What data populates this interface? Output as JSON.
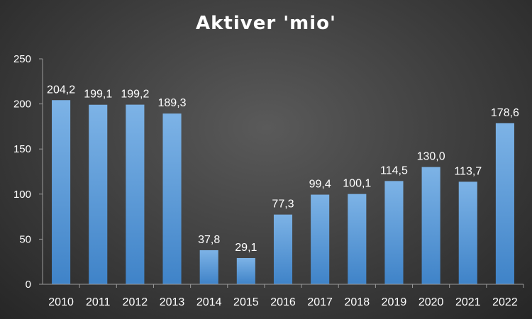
{
  "chart_data": {
    "type": "bar",
    "title": "Aktiver 'mio'",
    "xlabel": "",
    "ylabel": "",
    "categories": [
      "2010",
      "2011",
      "2012",
      "2013",
      "2014",
      "2015",
      "2016",
      "2017",
      "2018",
      "2019",
      "2020",
      "2021",
      "2022"
    ],
    "values": [
      204.2,
      199.1,
      199.2,
      189.3,
      37.8,
      29.1,
      77.3,
      99.4,
      100.1,
      114.5,
      130.0,
      113.7,
      178.6
    ],
    "value_labels": [
      "204,2",
      "199,1",
      "199,2",
      "189,3",
      "37,8",
      "29,1",
      "77,3",
      "99,4",
      "100,1",
      "114,5",
      "130,0",
      "113,7",
      "178,6"
    ],
    "ylim": [
      0,
      250
    ],
    "yticks": [
      0,
      50,
      100,
      150,
      200,
      250
    ],
    "grid": false,
    "legend": "none",
    "colors": {
      "bar_top": "#7db3e6",
      "bar_bottom": "#3f83c8",
      "text": "#ffffff",
      "axis": "#9a9a9a"
    }
  }
}
